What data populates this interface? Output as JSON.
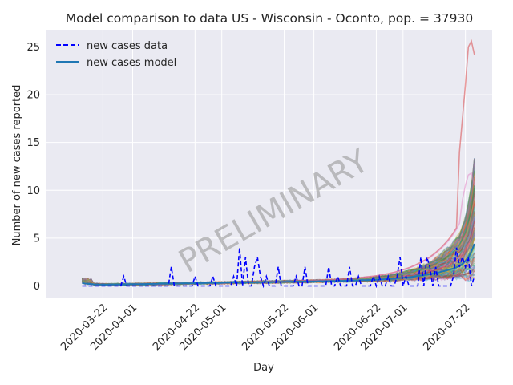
{
  "chart_data": {
    "type": "line",
    "title": "Model comparison to data US - Wisconsin - Oconto, pop. = 37930",
    "xlabel": "Day",
    "ylabel": "Number of new cases reported",
    "watermark": "PRELIMINARY",
    "x_start": "2020-03-15",
    "x_end": "2020-07-25",
    "xlim": [
      "2020-03-03",
      "2020-07-31"
    ],
    "ylim": [
      -1.3,
      26.8
    ],
    "grid": true,
    "legend_position": "top-left",
    "x_ticks": [
      "2020-03-22",
      "2020-04-01",
      "2020-04-22",
      "2020-05-01",
      "2020-05-22",
      "2020-06-01",
      "2020-06-22",
      "2020-07-01",
      "2020-07-22"
    ],
    "y_ticks": [
      0,
      5,
      10,
      15,
      20,
      25
    ],
    "series": [
      {
        "name": "new cases data",
        "style": "dashed",
        "color": "#0000ff",
        "values": [
          0,
          0,
          0,
          0,
          0,
          0,
          0,
          0,
          0,
          0,
          0,
          0,
          0,
          0,
          1,
          0,
          0,
          0,
          0,
          0,
          0,
          0,
          0,
          0,
          0,
          0,
          0,
          0,
          0,
          0,
          2,
          0,
          0,
          0,
          0,
          0,
          0,
          0,
          1,
          0,
          0,
          0,
          0,
          0,
          1,
          0,
          0,
          0,
          0,
          0,
          0,
          1,
          0,
          4,
          0,
          3,
          0,
          0,
          2,
          3,
          1,
          0,
          1,
          0,
          0,
          0,
          2,
          0,
          0,
          0,
          0,
          0,
          1,
          0,
          0,
          2,
          0,
          0,
          0,
          0,
          0,
          0,
          0,
          2,
          0,
          0,
          1,
          0,
          0,
          0,
          2,
          0,
          0,
          1,
          0,
          0,
          0,
          0,
          1,
          0,
          1,
          0,
          0,
          1,
          0,
          0,
          1,
          3,
          0,
          1,
          0,
          0,
          0,
          0,
          3,
          0,
          3,
          2,
          0,
          2,
          0,
          0,
          0,
          0,
          0,
          1,
          4,
          2,
          3,
          2,
          3,
          0,
          1
        ]
      },
      {
        "name": "new cases model",
        "style": "solid",
        "color": "#1f77b4",
        "values": [
          0.3,
          0.25,
          0.22,
          0.2,
          0.18,
          0.17,
          0.16,
          0.16,
          0.15,
          0.15,
          0.15,
          0.15,
          0.16,
          0.16,
          0.17,
          0.17,
          0.18,
          0.18,
          0.19,
          0.19,
          0.2,
          0.2,
          0.21,
          0.21,
          0.22,
          0.22,
          0.23,
          0.23,
          0.24,
          0.24,
          0.25,
          0.25,
          0.26,
          0.26,
          0.27,
          0.27,
          0.28,
          0.28,
          0.29,
          0.29,
          0.3,
          0.3,
          0.31,
          0.31,
          0.32,
          0.32,
          0.33,
          0.33,
          0.34,
          0.34,
          0.35,
          0.35,
          0.36,
          0.36,
          0.37,
          0.37,
          0.38,
          0.38,
          0.39,
          0.39,
          0.4,
          0.4,
          0.41,
          0.41,
          0.42,
          0.42,
          0.43,
          0.43,
          0.44,
          0.44,
          0.45,
          0.45,
          0.46,
          0.46,
          0.47,
          0.47,
          0.48,
          0.48,
          0.49,
          0.49,
          0.5,
          0.5,
          0.51,
          0.51,
          0.52,
          0.52,
          0.53,
          0.53,
          0.54,
          0.55,
          0.56,
          0.57,
          0.58,
          0.59,
          0.6,
          0.61,
          0.62,
          0.63,
          0.64,
          0.65,
          0.67,
          0.69,
          0.71,
          0.73,
          0.75,
          0.77,
          0.8,
          0.83,
          0.86,
          0.89,
          0.92,
          0.96,
          1.0,
          1.04,
          1.08,
          1.13,
          1.18,
          1.23,
          1.29,
          1.35,
          1.42,
          1.49,
          1.57,
          1.65,
          1.74,
          1.84,
          1.95,
          2.1,
          2.3,
          2.6,
          3.0,
          3.6,
          4.4
        ]
      }
    ],
    "ensemble": {
      "description_colors": [
        "#1f77b4",
        "#ff7f0e",
        "#2ca02c",
        "#d62728",
        "#9467bd",
        "#8c564b",
        "#e377c2",
        "#7f7f7f",
        "#bcbd22",
        "#17becf"
      ],
      "notable_max_trajectory": [
        14.0,
        17.5,
        21.0,
        25.0,
        25.6,
        24.2
      ],
      "notable_second_trajectory": [
        9.0,
        10.5,
        11.6,
        11.8,
        10.5
      ],
      "final_range": [
        1.3,
        10.7
      ]
    }
  }
}
